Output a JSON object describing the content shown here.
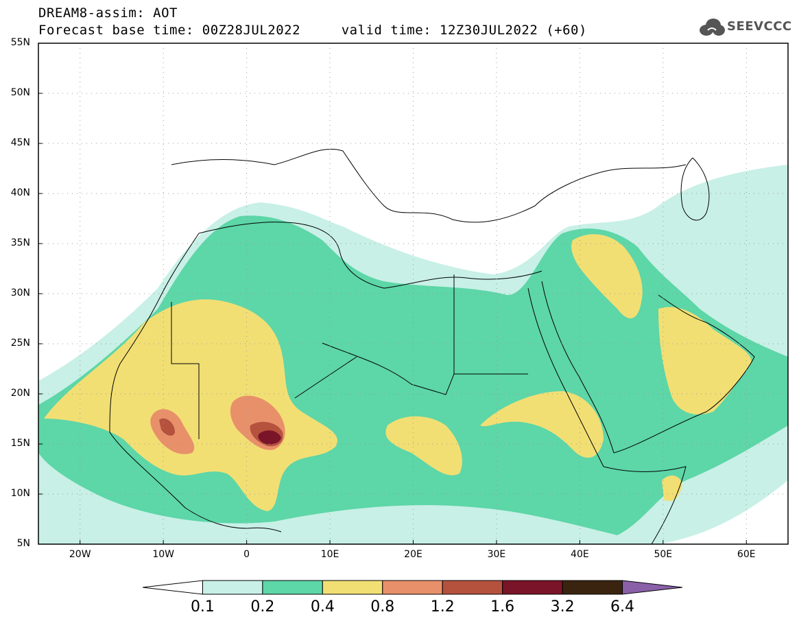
{
  "title": {
    "line1": "DREAM8-assim: AOT",
    "line2": "Forecast base time: 00Z28JUL2022     valid time: 12Z30JUL2022 (+60)"
  },
  "logo": {
    "text": "SEEVCCC",
    "icon": "cloud-icon"
  },
  "map": {
    "variable": "AOT",
    "projection": "lat-lon",
    "lon_range": [
      -25,
      65
    ],
    "lat_range": [
      5,
      55
    ],
    "grid": true,
    "lat_labels": [
      "55N",
      "50N",
      "45N",
      "40N",
      "35N",
      "30N",
      "25N",
      "20N",
      "15N",
      "10N",
      "5N"
    ],
    "lon_labels": [
      "20W",
      "10W",
      "0",
      "10E",
      "20E",
      "30E",
      "40E",
      "50E",
      "60E"
    ]
  },
  "colorbar": {
    "ticks": [
      "0.1",
      "0.2",
      "0.4",
      "0.8",
      "1.2",
      "1.6",
      "3.2",
      "6.4"
    ],
    "colors": [
      "#c8f0e6",
      "#5dd6a8",
      "#f2df74",
      "#e8906a",
      "#b4523e",
      "#7a1428",
      "#3a2410",
      "#8a60a8"
    ]
  }
}
